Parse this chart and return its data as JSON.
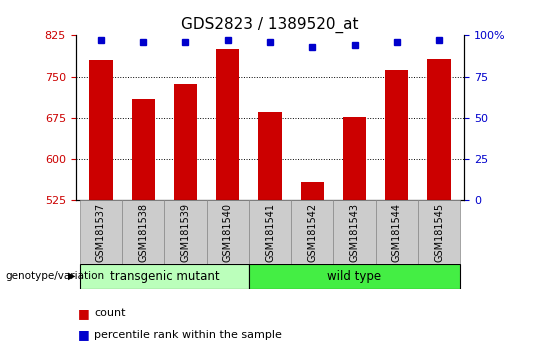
{
  "title": "GDS2823 / 1389520_at",
  "samples": [
    "GSM181537",
    "GSM181538",
    "GSM181539",
    "GSM181540",
    "GSM181541",
    "GSM181542",
    "GSM181543",
    "GSM181544",
    "GSM181545"
  ],
  "counts": [
    780,
    710,
    737,
    800,
    685,
    558,
    677,
    762,
    782
  ],
  "percentile_ranks": [
    97,
    96,
    96,
    97,
    96,
    93,
    94,
    96,
    97
  ],
  "ylim_left": [
    525,
    825
  ],
  "ylim_right": [
    0,
    100
  ],
  "yticks_left": [
    525,
    600,
    675,
    750,
    825
  ],
  "yticks_right": [
    0,
    25,
    50,
    75,
    100
  ],
  "bar_color": "#cc0000",
  "dot_color": "#0000cc",
  "grid_color": "black",
  "group1_label": "transgenic mutant",
  "group2_label": "wild type",
  "group1_count": 4,
  "group2_count": 5,
  "group1_color": "#bbffbb",
  "group2_color": "#44ee44",
  "xlabel_left": "genotype/variation",
  "legend_count_label": "count",
  "legend_pct_label": "percentile rank within the sample",
  "bar_width": 0.55,
  "tick_label_bg": "#cccccc",
  "title_fontsize": 11,
  "tick_fontsize": 8,
  "label_fontsize": 7
}
